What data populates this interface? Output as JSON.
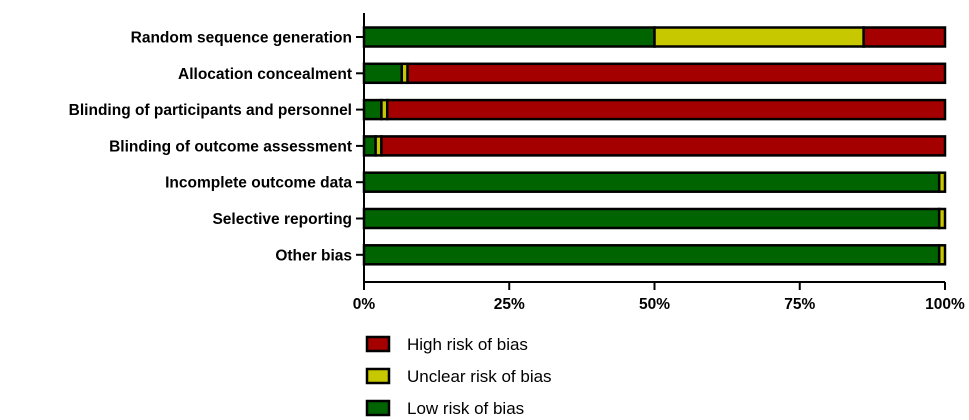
{
  "chart_data": {
    "type": "bar",
    "orientation": "horizontal",
    "stacked": true,
    "categories": [
      "Random sequence generation",
      "Allocation concealment",
      "Blinding of participants and personnel",
      "Blinding of outcome assessment",
      "Incomplete outcome data",
      "Selective reporting",
      "Other bias"
    ],
    "series": [
      {
        "name": "Low risk of bias",
        "color": "#006400",
        "values": [
          50,
          6.5,
          3,
          2,
          99,
          99,
          99
        ]
      },
      {
        "name": "Unclear risk of bias",
        "color": "#c8c800",
        "values": [
          36,
          1,
          1,
          1,
          1,
          1,
          1
        ]
      },
      {
        "name": "High risk of bias",
        "color": "#a50000",
        "values": [
          14,
          92.5,
          96,
          97,
          0,
          0,
          0
        ]
      }
    ],
    "xlim": [
      0,
      100
    ],
    "xticks": [
      0,
      25,
      50,
      75,
      100
    ],
    "xtick_labels": [
      "0%",
      "25%",
      "50%",
      "75%",
      "100%"
    ],
    "legend": {
      "placement": "bottom",
      "entries": [
        {
          "label": "High risk of bias",
          "color": "#a50000"
        },
        {
          "label": "Unclear risk of bias",
          "color": "#c8c800"
        },
        {
          "label": "Low risk of bias",
          "color": "#006400"
        }
      ]
    },
    "grid": false
  }
}
